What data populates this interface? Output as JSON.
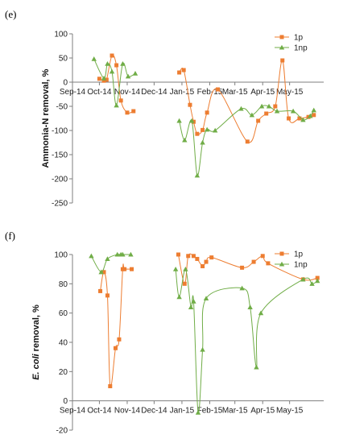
{
  "chart_data": [
    {
      "type": "line",
      "panel_label": "(e)",
      "ylabel": "Ammonia-N removal, %",
      "ylim": [
        -250,
        100
      ],
      "yticks": [
        100,
        50,
        0,
        -50,
        -100,
        -150,
        -200,
        -250
      ],
      "xlim": [
        "2014-09-01",
        "2015-06-08"
      ],
      "xticks": [
        "Sep-14",
        "Oct-14",
        "Nov-14",
        "Dec-14",
        "Jan-15",
        "Feb-15",
        "Mar-15",
        "Apr-15",
        "May-15"
      ],
      "xtick_dates": [
        "2014-09-01",
        "2014-10-01",
        "2014-11-01",
        "2014-12-01",
        "2015-01-01",
        "2015-02-01",
        "2015-03-01",
        "2015-04-01",
        "2015-05-01"
      ],
      "legend_position": "top-right",
      "series": [
        {
          "name": "1p",
          "color": "#ed7d31",
          "marker": "square",
          "segments": [
            {
              "x": [
                "2014-10-01",
                "2014-10-06",
                "2014-10-09",
                "2014-10-15",
                "2014-10-20",
                "2014-10-25",
                "2014-11-01",
                "2014-11-08"
              ],
              "y": [
                7,
                3,
                5,
                55,
                35,
                -38,
                -63,
                -60
              ]
            },
            {
              "x": [
                "2014-12-29",
                "2015-01-03",
                "2015-01-10",
                "2015-01-14",
                "2015-01-18",
                "2015-01-24",
                "2015-01-29",
                "2015-02-10",
                "2015-03-15",
                "2015-03-27",
                "2015-04-05",
                "2015-04-15",
                "2015-04-23",
                "2015-04-30",
                "2015-05-12",
                "2015-05-22",
                "2015-05-28"
              ],
              "y": [
                20,
                25,
                -47,
                -82,
                -107,
                -99,
                -63,
                -15,
                -123,
                -80,
                -65,
                -50,
                45,
                -75,
                -75,
                -72,
                -68
              ]
            }
          ]
        },
        {
          "name": "1np",
          "color": "#70ad47",
          "marker": "triangle",
          "segments": [
            {
              "x": [
                "2014-09-25",
                "2014-10-06",
                "2014-10-10",
                "2014-10-15",
                "2014-10-20",
                "2014-10-27",
                "2014-11-02",
                "2014-11-10"
              ],
              "y": [
                48,
                8,
                38,
                22,
                -48,
                38,
                12,
                18
              ]
            },
            {
              "x": [
                "2014-12-29",
                "2015-01-04",
                "2015-01-12",
                "2015-01-18",
                "2015-01-24",
                "2015-01-29",
                "2015-02-07",
                "2015-03-08",
                "2015-03-20",
                "2015-03-31",
                "2015-04-08",
                "2015-04-17",
                "2015-05-05",
                "2015-05-16",
                "2015-05-24",
                "2015-05-28"
              ],
              "y": [
                -80,
                -120,
                -80,
                -193,
                -125,
                -98,
                -100,
                -55,
                -68,
                -50,
                -50,
                -60,
                -60,
                -78,
                -70,
                -58
              ]
            }
          ]
        }
      ]
    },
    {
      "type": "line",
      "panel_label": "(f)",
      "ylabel_italic": "E. coli",
      "ylabel_rest": " removal, %",
      "ylim": [
        -20,
        100
      ],
      "yticks": [
        100,
        80,
        60,
        40,
        20,
        0,
        -20
      ],
      "xlim": [
        "2014-09-01",
        "2015-06-08"
      ],
      "xticks": [
        "Sep-14",
        "Oct-14",
        "Nov-14",
        "Dec-14",
        "Jan-15",
        "Feb-15",
        "Mar-15",
        "Apr-15",
        "May-15"
      ],
      "xtick_dates": [
        "2014-09-01",
        "2014-10-01",
        "2014-11-01",
        "2014-12-01",
        "2015-01-01",
        "2015-02-01",
        "2015-03-01",
        "2015-04-01",
        "2015-05-01"
      ],
      "legend_position": "top-right",
      "series": [
        {
          "name": "1p",
          "color": "#ed7d31",
          "marker": "square",
          "segments": [
            {
              "x": [
                "2014-10-02",
                "2014-10-06",
                "2014-10-10",
                "2014-10-13",
                "2014-10-19",
                "2014-10-23",
                "2014-10-27",
                "2014-10-29",
                "2014-11-06"
              ],
              "y": [
                75,
                88,
                72,
                10,
                36,
                42,
                90,
                90,
                90
              ]
            },
            {
              "x": [
                "2014-12-28",
                "2015-01-04",
                "2015-01-08",
                "2015-01-14",
                "2015-01-18",
                "2015-01-24",
                "2015-01-28",
                "2015-02-03",
                "2015-03-09",
                "2015-03-22",
                "2015-04-01",
                "2015-04-07",
                "2015-05-16",
                "2015-06-01"
              ],
              "y": [
                100,
                80,
                99,
                99,
                97,
                92,
                95,
                98,
                91,
                95,
                99,
                94,
                83,
                84
              ]
            }
          ]
        },
        {
          "name": "1np",
          "color": "#70ad47",
          "marker": "triangle",
          "segments": [
            {
              "x": [
                "2014-09-22",
                "2014-10-03",
                "2014-10-10",
                "2014-10-21",
                "2014-10-25",
                "2014-10-27",
                "2014-11-05"
              ],
              "y": [
                99,
                88,
                97,
                100,
                100,
                100,
                100
              ]
            },
            {
              "x": [
                "2014-12-25",
                "2014-12-29",
                "2015-01-05",
                "2015-01-11",
                "2015-01-14",
                "2015-01-19",
                "2015-01-24",
                "2015-01-28",
                "2015-03-09",
                "2015-03-18",
                "2015-03-25",
                "2015-03-30",
                "2015-05-16",
                "2015-05-26",
                "2015-06-01"
              ],
              "y": [
                90,
                71,
                90,
                64,
                68,
                -8,
                35,
                70,
                77,
                64,
                23,
                60,
                83,
                80,
                82
              ]
            }
          ]
        }
      ]
    }
  ]
}
